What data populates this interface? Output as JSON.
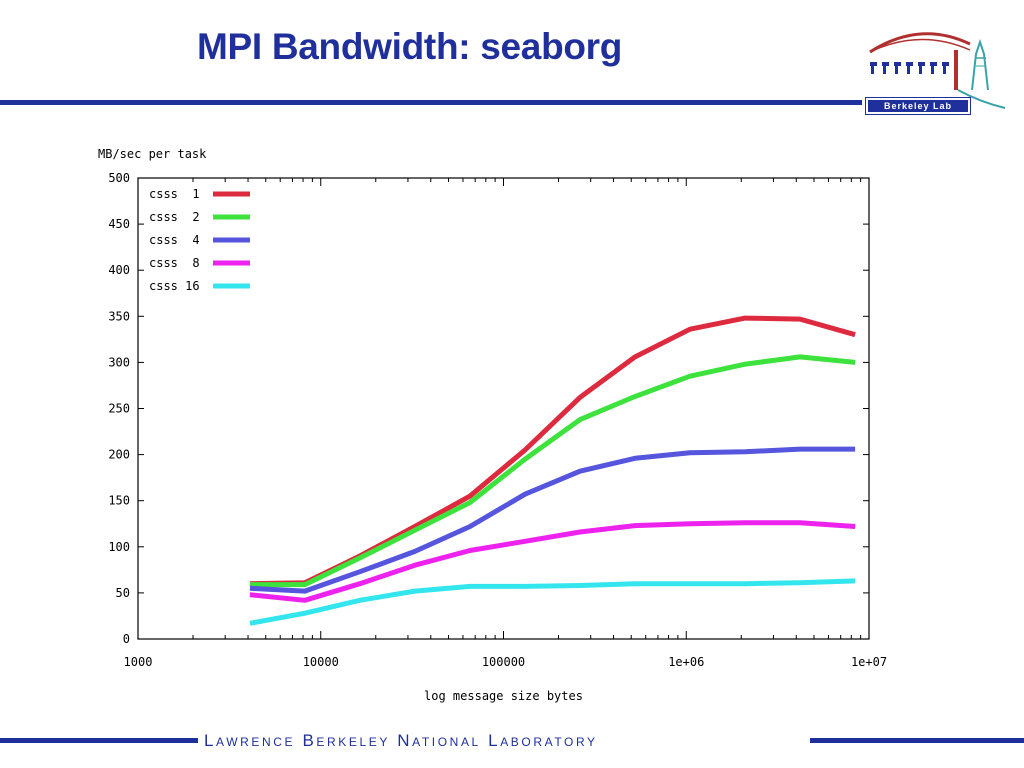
{
  "slide": {
    "title": "MPI Bandwidth: seaborg",
    "logo_text": "Berkeley Lab",
    "footer": "Lawrence Berkeley National Laboratory"
  },
  "colors": {
    "brand_blue": "#1f2f9c",
    "logo_red": "#b03030",
    "logo_teal": "#3aa3a8"
  },
  "chart_data": {
    "type": "line",
    "title": "",
    "ylabel": "MB/sec per task",
    "xlabel": "log message size bytes",
    "xscale": "log",
    "xlim": [
      1000,
      10000000
    ],
    "ylim": [
      0,
      500
    ],
    "grid": false,
    "legend_position": "top-left",
    "x_tick_labels": [
      "1000",
      "10000",
      "100000",
      "1e+06",
      "1e+07"
    ],
    "y_tick_labels": [
      "0",
      "50",
      "100",
      "150",
      "200",
      "250",
      "300",
      "350",
      "400",
      "450",
      "500"
    ],
    "series": [
      {
        "name": "csss  1",
        "color": "#dd2a3e",
        "points": [
          [
            4096,
            60
          ],
          [
            8192,
            61
          ],
          [
            16384,
            90
          ],
          [
            32768,
            122
          ],
          [
            65536,
            155
          ],
          [
            131072,
            205
          ],
          [
            262144,
            262
          ],
          [
            524288,
            306
          ],
          [
            1048576,
            336
          ],
          [
            2097152,
            348
          ],
          [
            4194304,
            347
          ],
          [
            8388608,
            330
          ]
        ]
      },
      {
        "name": "csss  2",
        "color": "#3de23d",
        "points": [
          [
            4096,
            59
          ],
          [
            8192,
            59
          ],
          [
            16384,
            88
          ],
          [
            32768,
            118
          ],
          [
            65536,
            148
          ],
          [
            131072,
            195
          ],
          [
            262144,
            238
          ],
          [
            524288,
            263
          ],
          [
            1048576,
            285
          ],
          [
            2097152,
            298
          ],
          [
            4194304,
            306
          ],
          [
            8388608,
            300
          ]
        ]
      },
      {
        "name": "csss  4",
        "color": "#5555dd",
        "points": [
          [
            4096,
            55
          ],
          [
            8192,
            52
          ],
          [
            16384,
            73
          ],
          [
            32768,
            95
          ],
          [
            65536,
            122
          ],
          [
            131072,
            157
          ],
          [
            262144,
            182
          ],
          [
            524288,
            196
          ],
          [
            1048576,
            202
          ],
          [
            2097152,
            203
          ],
          [
            4194304,
            206
          ],
          [
            8388608,
            206
          ]
        ]
      },
      {
        "name": "csss  8",
        "color": "#ee22ee",
        "points": [
          [
            4096,
            48
          ],
          [
            8192,
            42
          ],
          [
            16384,
            60
          ],
          [
            32768,
            80
          ],
          [
            65536,
            96
          ],
          [
            131072,
            106
          ],
          [
            262144,
            116
          ],
          [
            524288,
            123
          ],
          [
            1048576,
            125
          ],
          [
            2097152,
            126
          ],
          [
            4194304,
            126
          ],
          [
            8388608,
            122
          ]
        ]
      },
      {
        "name": "csss 16",
        "color": "#33e6ee",
        "points": [
          [
            4096,
            17
          ],
          [
            8192,
            28
          ],
          [
            16384,
            42
          ],
          [
            32768,
            52
          ],
          [
            65536,
            57
          ],
          [
            131072,
            57
          ],
          [
            262144,
            58
          ],
          [
            524288,
            60
          ],
          [
            1048576,
            60
          ],
          [
            2097152,
            60
          ],
          [
            4194304,
            61
          ],
          [
            8388608,
            63
          ]
        ]
      }
    ]
  }
}
